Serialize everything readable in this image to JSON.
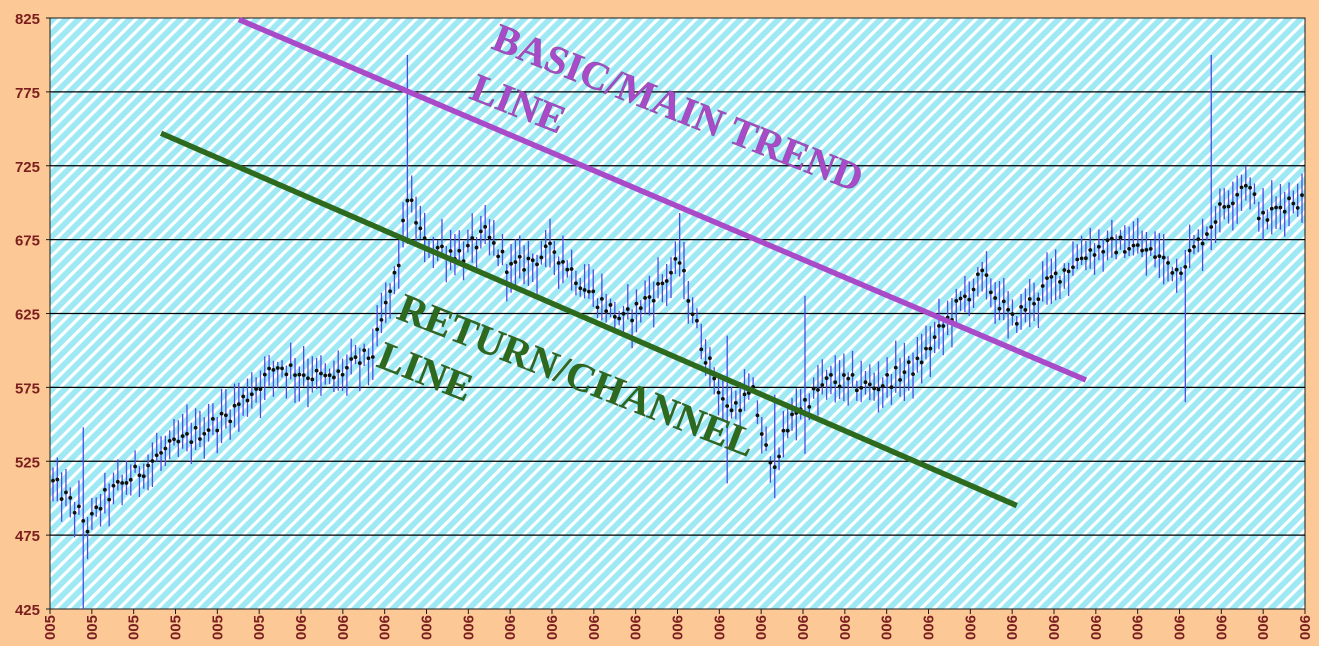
{
  "chart_data": {
    "type": "candlestick",
    "title": "",
    "xlabel": "",
    "ylabel": "",
    "ylim": [
      425,
      825
    ],
    "yticks": [
      425,
      475,
      525,
      575,
      625,
      675,
      725,
      775,
      825
    ],
    "ytick_labels": [
      "425",
      "475",
      "525",
      "575",
      "625",
      "675",
      "725",
      "775",
      "825"
    ],
    "xtick_labels": [
      "005",
      "005",
      "005",
      "005",
      "005",
      "005",
      "006",
      "006",
      "006",
      "006",
      "006",
      "006",
      "006",
      "006",
      "006",
      "006",
      "006",
      "006",
      "006",
      "006",
      "006",
      "006",
      "006",
      "006",
      "006",
      "006",
      "006",
      "006",
      "006",
      "006",
      "006"
    ],
    "grid": true,
    "colors": {
      "background": "#FCC896",
      "plot_area": "#9FE9F5",
      "hatch": "#FFFFFF",
      "gridline": "#000000",
      "wick": "#4A4AE8",
      "close_dot": "#101010",
      "basic_trend": "#A94BC9",
      "return_channel": "#2D6A1E",
      "tick_label": "#7A1E1E"
    },
    "key_points": [
      {
        "t": 0,
        "value": 510
      },
      {
        "t": 6,
        "value": 490
      },
      {
        "t": 8,
        "value": 480
      },
      {
        "t": 12,
        "value": 500
      },
      {
        "t": 25,
        "value": 530
      },
      {
        "t": 40,
        "value": 555
      },
      {
        "t": 52,
        "value": 590
      },
      {
        "t": 64,
        "value": 580
      },
      {
        "t": 74,
        "value": 598
      },
      {
        "t": 80,
        "value": 660
      },
      {
        "t": 82,
        "value": 705
      },
      {
        "t": 86,
        "value": 672
      },
      {
        "t": 95,
        "value": 665
      },
      {
        "t": 100,
        "value": 678
      },
      {
        "t": 106,
        "value": 655
      },
      {
        "t": 116,
        "value": 668
      },
      {
        "t": 124,
        "value": 640
      },
      {
        "t": 132,
        "value": 620
      },
      {
        "t": 140,
        "value": 642
      },
      {
        "t": 145,
        "value": 660
      },
      {
        "t": 150,
        "value": 605
      },
      {
        "t": 156,
        "value": 560
      },
      {
        "t": 162,
        "value": 570
      },
      {
        "t": 166,
        "value": 520
      },
      {
        "t": 172,
        "value": 560
      },
      {
        "t": 180,
        "value": 580
      },
      {
        "t": 190,
        "value": 575
      },
      {
        "t": 200,
        "value": 590
      },
      {
        "t": 208,
        "value": 625
      },
      {
        "t": 215,
        "value": 650
      },
      {
        "t": 222,
        "value": 620
      },
      {
        "t": 232,
        "value": 650
      },
      {
        "t": 240,
        "value": 668
      },
      {
        "t": 248,
        "value": 672
      },
      {
        "t": 255,
        "value": 665
      },
      {
        "t": 260,
        "value": 655
      },
      {
        "t": 264,
        "value": 668
      },
      {
        "t": 270,
        "value": 695
      },
      {
        "t": 276,
        "value": 715
      },
      {
        "t": 280,
        "value": 688
      },
      {
        "t": 286,
        "value": 702
      }
    ],
    "spikes": [
      {
        "t": 7,
        "high": 548,
        "low": 425
      },
      {
        "t": 82,
        "high": 800,
        "low": 672
      },
      {
        "t": 145,
        "high": 693,
        "low": 650
      },
      {
        "t": 156,
        "high": 610,
        "low": 510
      },
      {
        "t": 167,
        "high": 570,
        "low": 500
      },
      {
        "t": 174,
        "high": 637,
        "low": 530
      },
      {
        "t": 262,
        "high": 668,
        "low": 565
      },
      {
        "t": 268,
        "high": 800,
        "low": 668
      }
    ],
    "trendlines": [
      {
        "name": "basic",
        "start": {
          "t": 43,
          "value": 824
        },
        "end": {
          "t": 239,
          "value": 580
        }
      },
      {
        "name": "return",
        "start": {
          "t": 25,
          "value": 747
        },
        "end": {
          "t": 223,
          "value": 495
        }
      }
    ],
    "annotations": [
      {
        "id": "basic",
        "lines": [
          "BASIC/MAIN TREND",
          "LINE"
        ]
      },
      {
        "id": "return",
        "lines": [
          "RETURN/CHANNEL",
          "LINE"
        ]
      }
    ]
  }
}
